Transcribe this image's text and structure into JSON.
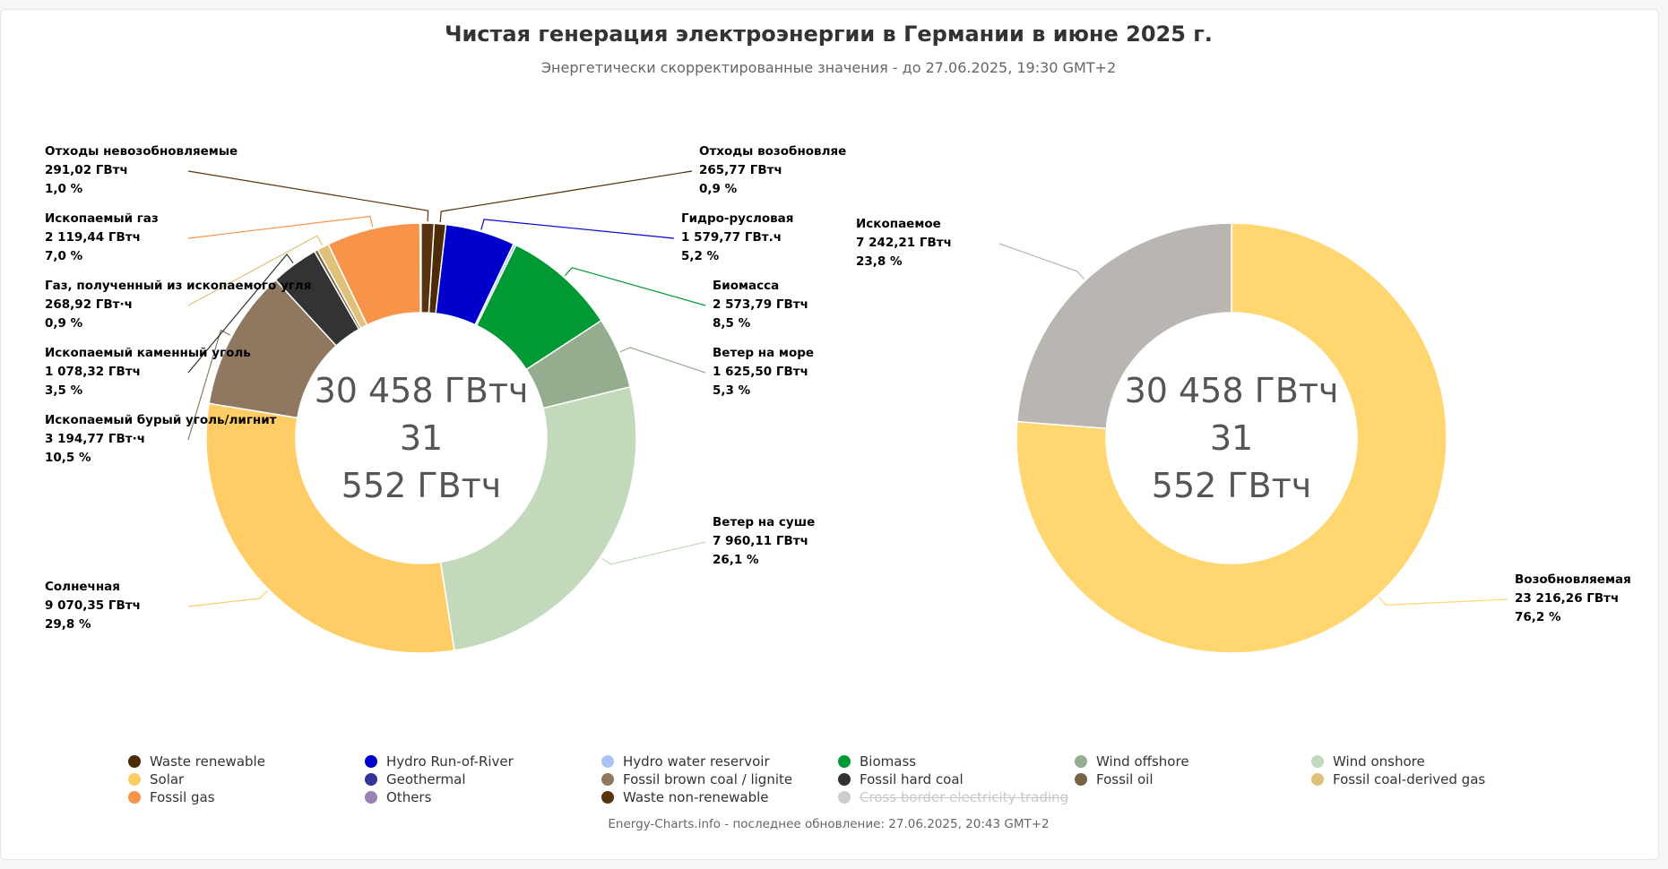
{
  "title": "Чистая генерация электроэнергии в Германии в июне 2025 г.",
  "subtitle": "Энергетически скорректированные значения - до 27.06.2025, 19:30 GMT+2",
  "credits": "Energy-Charts.info - последнее обновление: 27.06.2025, 20:43 GMT+2",
  "center_text": [
    "30 458 ГВтч",
    "31",
    "552 ГВтч"
  ],
  "legend": [
    {
      "label": "Waste renewable",
      "color": "#4d2b05",
      "enabled": true
    },
    {
      "label": "Hydro Run-of-River",
      "color": "#0000cc",
      "enabled": true
    },
    {
      "label": "Hydro water reservoir",
      "color": "#a9c4f5",
      "enabled": true
    },
    {
      "label": "Biomass",
      "color": "#009933",
      "enabled": true
    },
    {
      "label": "Wind offshore",
      "color": "#95ad8f",
      "enabled": true
    },
    {
      "label": "Wind onshore",
      "color": "#c2d9bc",
      "enabled": true
    },
    {
      "label": "Solar",
      "color": "#ffcc66",
      "enabled": true
    },
    {
      "label": "Geothermal",
      "color": "#333399",
      "enabled": true
    },
    {
      "label": "Fossil brown coal / lignite",
      "color": "#8f7760",
      "enabled": true
    },
    {
      "label": "Fossil hard coal",
      "color": "#333333",
      "enabled": true
    },
    {
      "label": "Fossil oil",
      "color": "#7a6246",
      "enabled": true
    },
    {
      "label": "Fossil coal-derived gas",
      "color": "#e0c17a",
      "enabled": true
    },
    {
      "label": "Fossil gas",
      "color": "#f7944a",
      "enabled": true
    },
    {
      "label": "Others",
      "color": "#9982b4",
      "enabled": true
    },
    {
      "label": "Waste non-renewable",
      "color": "#5a3410",
      "enabled": true
    },
    {
      "label": "Cross border electricity trading",
      "color": "#cccccc",
      "enabled": false
    }
  ],
  "chart_data": [
    {
      "type": "pie",
      "variant": "donut",
      "slices": [
        {
          "label": "Отходы возобновляе",
          "value": 265.77,
          "pct": "0,9 %",
          "value_text": "265,77 ГВтч",
          "color": "#4d2b05"
        },
        {
          "label": "Гидро-русловая",
          "value": 1579.77,
          "pct": "5,2 %",
          "value_text": "1 579,77 ГВт.ч",
          "color": "#0000cc"
        },
        {
          "label": "",
          "value": 60,
          "pct": "",
          "value_text": "",
          "color": "#a9c4f5"
        },
        {
          "label": "Биомасса",
          "value": 2573.79,
          "pct": "8,5 %",
          "value_text": "2 573,79 ГВтч",
          "color": "#009933"
        },
        {
          "label": "Ветер на море",
          "value": 1625.5,
          "pct": "5,3 %",
          "value_text": "1 625,50 ГВтч",
          "color": "#95ad8f"
        },
        {
          "label": "Ветер на суше",
          "value": 7960.11,
          "pct": "26,1 %",
          "value_text": "7 960,11 ГВтч",
          "color": "#c2d9bc"
        },
        {
          "label": "Солнечная",
          "value": 9070.35,
          "pct": "29,8 %",
          "value_text": "9 070,35 ГВтч",
          "color": "#ffcc66"
        },
        {
          "label": "Ископаемый бурый уголь/лигнит",
          "value": 3194.77,
          "pct": "10,5 %",
          "value_text": "3 194,77 ГВт·ч",
          "color": "#8f7760"
        },
        {
          "label": "Ископаемый каменный уголь",
          "value": 1078.32,
          "pct": "3,5 %",
          "value_text": "1 078,32 ГВтч",
          "color": "#333333"
        },
        {
          "label": "",
          "value": 80,
          "pct": "",
          "value_text": "",
          "color": "#7a6246"
        },
        {
          "label": "Газ, полученный из ископаемого угля",
          "value": 268.92,
          "pct": "0,9 %",
          "value_text": "268,92 ГВт·ч",
          "color": "#e0c17a"
        },
        {
          "label": "Ископаемый газ",
          "value": 2119.44,
          "pct": "7,0 %",
          "value_text": "2 119,44 ГВтч",
          "color": "#f7944a"
        },
        {
          "label": "",
          "value": 25,
          "pct": "",
          "value_text": "",
          "color": "#9982b4"
        },
        {
          "label": "Отходы невозобновляемые",
          "value": 291.02,
          "pct": "1,0 %",
          "value_text": "291,02 ГВтч",
          "color": "#5a3410"
        }
      ]
    },
    {
      "type": "pie",
      "variant": "donut",
      "slices": [
        {
          "label": "Возобновляемая",
          "value": 23216.26,
          "pct": "76,2 %",
          "value_text": "23 216,26 ГВтч",
          "color": "#ffd670"
        },
        {
          "label": "Ископаемое",
          "value": 7242.21,
          "pct": "23,8 %",
          "value_text": "7 242,21 ГВтч",
          "color": "#b9b5b1"
        }
      ]
    }
  ]
}
